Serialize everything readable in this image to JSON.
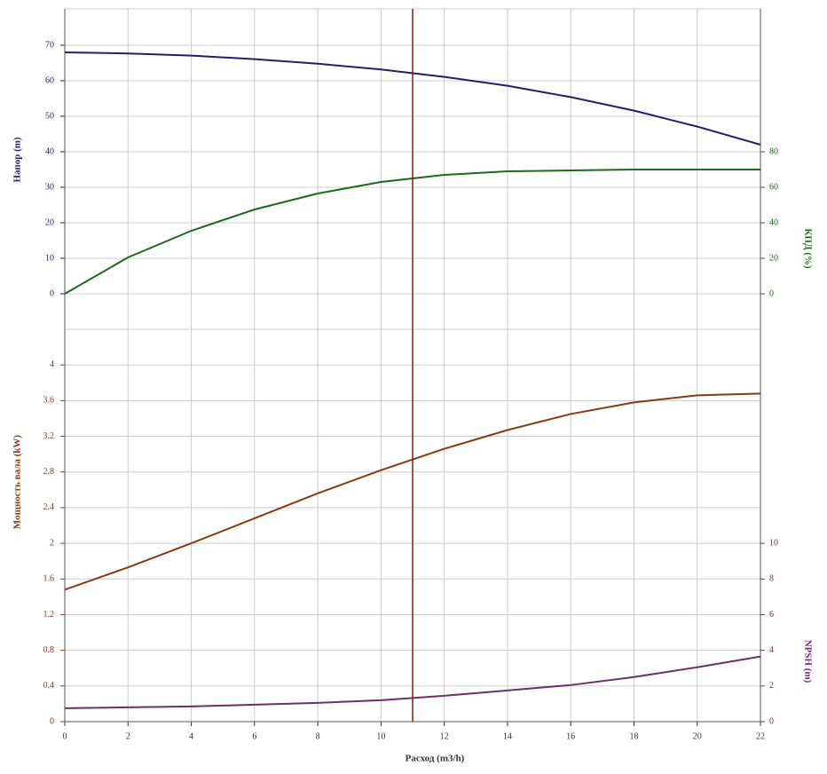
{
  "chart_data": [
    {
      "type": "line",
      "x": [
        0,
        2,
        4,
        6,
        8,
        10,
        12,
        14,
        16,
        18,
        20,
        22
      ],
      "xlim": [
        0,
        22
      ],
      "ylim": [
        -10,
        80
      ],
      "yticks": [
        0,
        10,
        20,
        30,
        40,
        50,
        60,
        70
      ],
      "y2lim": [
        -20,
        160
      ],
      "y2ticks": [
        0,
        20,
        40,
        60,
        80
      ],
      "ylabel": "Напор (m)",
      "y2label": "КПД (%)",
      "vline": 11,
      "vline_color": "#8b1a1a",
      "series": [
        {
          "color": "#1f1f6e",
          "values": [
            68,
            67.7,
            67.1,
            66.1,
            64.8,
            63.2,
            61.1,
            58.6,
            55.4,
            51.6,
            47.1,
            42
          ]
        },
        {
          "color": "#1a6b1a",
          "axis": "y2",
          "values": [
            0,
            20.5,
            35.5,
            47.5,
            56.5,
            63,
            67,
            69,
            69.5,
            70,
            70,
            70
          ]
        }
      ]
    },
    {
      "type": "line",
      "x": [
        0,
        2,
        4,
        6,
        8,
        10,
        12,
        14,
        16,
        18,
        20,
        22
      ],
      "xlim": [
        0,
        22
      ],
      "xticks": [
        0,
        2,
        4,
        6,
        8,
        10,
        12,
        14,
        16,
        18,
        20,
        22
      ],
      "xlabel": "Расход (m3/h)",
      "ylim": [
        0,
        4.4
      ],
      "yticks": [
        0,
        0.4,
        0.8,
        1.2,
        1.6,
        2,
        2.4,
        2.8,
        3.2,
        3.6,
        4
      ],
      "y2lim": [
        0,
        22
      ],
      "y2ticks": [
        0,
        2,
        4,
        6,
        8,
        10
      ],
      "ylabel": "Мощность вала (kW)",
      "y2label": "NPSH (m)",
      "series": [
        {
          "color": "#8b3a10",
          "values": [
            1.48,
            1.73,
            2.0,
            2.28,
            2.56,
            2.82,
            3.06,
            3.27,
            3.45,
            3.58,
            3.66,
            3.68
          ]
        },
        {
          "color": "#6b2f6b",
          "axis": "y2",
          "values": [
            0.75,
            0.8,
            0.85,
            0.95,
            1.05,
            1.2,
            1.45,
            1.75,
            2.05,
            2.5,
            3.05,
            3.65
          ]
        }
      ]
    }
  ]
}
